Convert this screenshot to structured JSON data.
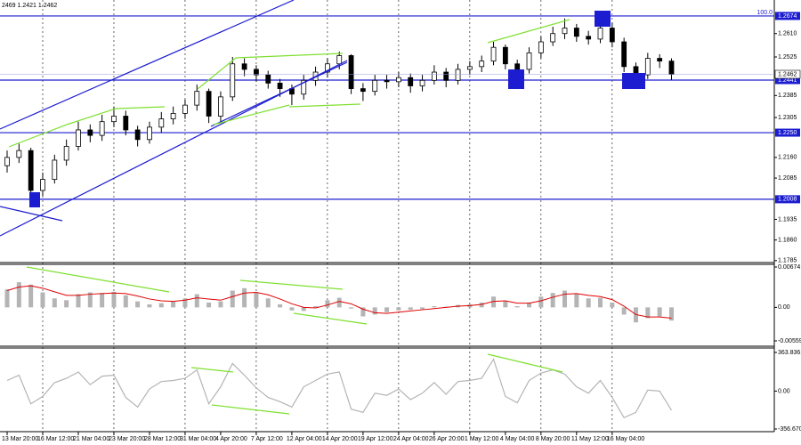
{
  "chart_data": {
    "type": "candlestick",
    "header": "2469 1.2421 1.2462",
    "categories": [
      "13 Mar 20:00",
      null,
      null,
      "16 Mar 12:00",
      null,
      null,
      "21 Mar 04:00",
      null,
      null,
      "23 Mar 20:00",
      null,
      null,
      "28 Mar 12:00",
      null,
      null,
      "31 Mar 04:00",
      null,
      null,
      "4 Apr 20:00",
      null,
      null,
      "7 Apr 12:00",
      null,
      null,
      "12 Apr 04:00",
      null,
      null,
      "14 Apr 20:00",
      null,
      null,
      "19 Apr 12:00",
      null,
      null,
      "24 Apr 04:00",
      null,
      null,
      "26 Apr 20:00",
      null,
      null,
      "1 May 12:00",
      null,
      null,
      "4 May 04:00",
      null,
      null,
      "8 May 20:00",
      null,
      null,
      "11 May 12:00",
      null,
      null,
      "16 May 04:00",
      null,
      null,
      null,
      null,
      null
    ],
    "open": [
      1.213,
      1.216,
      1.2185,
      1.204,
      1.208,
      1.215,
      1.22,
      1.226,
      1.224,
      1.229,
      1.231,
      1.226,
      1.2225,
      1.227,
      1.23,
      1.232,
      1.235,
      1.24,
      1.231,
      1.238,
      1.25,
      1.248,
      1.246,
      1.243,
      1.241,
      1.239,
      1.244,
      1.247,
      1.25,
      1.253,
      1.241,
      1.24,
      1.244,
      1.2435,
      1.245,
      1.242,
      1.244,
      1.247,
      1.244,
      1.248,
      1.249,
      1.251,
      1.256,
      1.25,
      1.248,
      1.254,
      1.258,
      1.261,
      1.263,
      1.26,
      1.259,
      1.263,
      1.258,
      1.249,
      1.246,
      1.252,
      1.251
    ],
    "high": [
      1.2185,
      1.221,
      1.2195,
      1.2105,
      1.217,
      1.2225,
      1.229,
      1.228,
      1.2315,
      1.2345,
      1.233,
      1.2275,
      1.229,
      1.2325,
      1.2345,
      1.237,
      1.2425,
      1.241,
      1.24,
      1.2525,
      1.252,
      1.2495,
      1.2475,
      1.2445,
      1.2425,
      1.246,
      1.249,
      1.252,
      1.2545,
      1.2535,
      1.243,
      1.246,
      1.246,
      1.247,
      1.2465,
      1.246,
      1.2495,
      1.2485,
      1.25,
      1.251,
      1.253,
      1.258,
      1.257,
      1.2515,
      1.256,
      1.26,
      1.2635,
      1.2665,
      1.2645,
      1.262,
      1.2672,
      1.265,
      1.2595,
      1.2505,
      1.254,
      1.2535,
      1.252
    ],
    "low": [
      1.2105,
      1.214,
      1.2,
      1.202,
      1.2065,
      1.213,
      1.2185,
      1.2215,
      1.222,
      1.227,
      1.224,
      1.22,
      1.221,
      1.225,
      1.228,
      1.23,
      1.233,
      1.2285,
      1.229,
      1.2365,
      1.2455,
      1.2435,
      1.241,
      1.238,
      1.235,
      1.237,
      1.242,
      1.245,
      1.248,
      1.239,
      1.2365,
      1.2385,
      1.241,
      1.2415,
      1.2395,
      1.24,
      1.2425,
      1.2415,
      1.2425,
      1.246,
      1.247,
      1.2495,
      1.248,
      1.244,
      1.2465,
      1.252,
      1.2565,
      1.259,
      1.258,
      1.257,
      1.2575,
      1.256,
      1.247,
      1.243,
      1.2445,
      1.2485,
      1.2441
    ],
    "close": [
      1.216,
      1.2185,
      1.204,
      1.208,
      1.215,
      1.22,
      1.226,
      1.224,
      1.229,
      1.231,
      1.226,
      1.2225,
      1.227,
      1.23,
      1.232,
      1.235,
      1.24,
      1.231,
      1.238,
      1.25,
      1.248,
      1.246,
      1.243,
      1.241,
      1.239,
      1.244,
      1.247,
      1.25,
      1.253,
      1.241,
      1.24,
      1.244,
      1.2435,
      1.245,
      1.242,
      1.244,
      1.247,
      1.244,
      1.248,
      1.249,
      1.251,
      1.256,
      1.25,
      1.248,
      1.254,
      1.258,
      1.261,
      1.263,
      1.26,
      1.259,
      1.263,
      1.258,
      1.249,
      1.246,
      1.252,
      1.251,
      1.2462
    ],
    "up_color": "#ffffff",
    "down_color": "#000000",
    "ylim": [
      1.1778,
      1.2732
    ],
    "yticks": [
      {
        "value": 1.261,
        "label": "1.2610"
      },
      1.2525,
      1.2385,
      1.2305,
      {
        "value": 1.216,
        "label": "1.2160"
      },
      1.2085,
      1.1935,
      {
        "value": 1.186,
        "label": "1.1860"
      },
      1.1785
    ],
    "grid": true,
    "level_color": "#1c1cd0",
    "levels": [
      {
        "value": 1.2674,
        "label": "1.2674"
      },
      {
        "value": 1.2441,
        "label": "1.2441"
      },
      {
        "value": 1.225,
        "label": "1.2250"
      },
      {
        "value": 1.2008,
        "label": "1.2008"
      }
    ],
    "level_note": "100.0",
    "current_price": {
      "value": 1.2462,
      "label": "1.2462"
    },
    "macd": {
      "ylim": [
        -0.00559,
        0.00674
      ],
      "yticks": [
        0.00674,
        {
          "value": 0,
          "label": "0.00"
        },
        -0.00559
      ],
      "histogram_color": "#b4b4b4",
      "signal_color": "#e00000",
      "histogram": [
        0.003,
        0.0042,
        0.0038,
        0.0025,
        0.0015,
        0.0012,
        0.0022,
        0.0025,
        0.0024,
        0.0026,
        0.002,
        0.001,
        0.0005,
        0.0007,
        0.001,
        0.0015,
        0.0022,
        0.0008,
        0.001,
        0.0028,
        0.0032,
        0.0025,
        0.0015,
        0.0005,
        -0.0005,
        -0.0006,
        0.0002,
        0.0012,
        0.0016,
        -0.0002,
        -0.0015,
        -0.0012,
        -0.0008,
        -0.0005,
        -0.0004,
        -0.0003,
        0.0002,
        0.0001,
        0.0004,
        0.0005,
        0.0008,
        0.0018,
        0.001,
        0.0002,
        0.0008,
        0.0018,
        0.0024,
        0.0028,
        0.0022,
        0.0015,
        0.0016,
        0.0008,
        -0.0012,
        -0.0025,
        -0.0018,
        -0.0015,
        -0.0022
      ],
      "signal": [
        0.0028,
        0.0034,
        0.0036,
        0.0032,
        0.0026,
        0.002,
        0.002,
        0.0022,
        0.0023,
        0.0024,
        0.0023,
        0.0019,
        0.0014,
        0.0011,
        0.001,
        0.0012,
        0.0016,
        0.0014,
        0.0012,
        0.0018,
        0.0024,
        0.0025,
        0.0021,
        0.0014,
        0.0006,
        0,
        -0.0001,
        0.0004,
        0.001,
        0.0006,
        -0.0003,
        -0.0009,
        -0.001,
        -0.0008,
        -0.0006,
        -0.0004,
        -0.0002,
        0,
        0.0002,
        0.0003,
        0.0005,
        0.001,
        0.0011,
        0.0007,
        0.0007,
        0.0011,
        0.0017,
        0.0022,
        0.0023,
        0.002,
        0.0018,
        0.0013,
        0.0002,
        -0.0012,
        -0.0016,
        -0.0016,
        -0.0018
      ]
    },
    "cci": {
      "ylim": [
        -356.6701,
        363.8361
      ],
      "yticks": [
        363.8361,
        {
          "value": 0,
          "label": "0.00"
        },
        -356.6701
      ],
      "color": "#b4b4b4",
      "values": [
        100,
        150,
        -120,
        -50,
        80,
        120,
        180,
        60,
        140,
        150,
        -60,
        -150,
        20,
        90,
        100,
        120,
        200,
        -120,
        40,
        260,
        150,
        30,
        -60,
        -100,
        -150,
        40,
        100,
        160,
        180,
        -170,
        -200,
        -20,
        -40,
        20,
        -80,
        -20,
        80,
        -30,
        90,
        100,
        120,
        300,
        -50,
        -110,
        100,
        170,
        200,
        160,
        40,
        -20,
        100,
        -60,
        -250,
        -200,
        10,
        0,
        -180
      ]
    }
  }
}
